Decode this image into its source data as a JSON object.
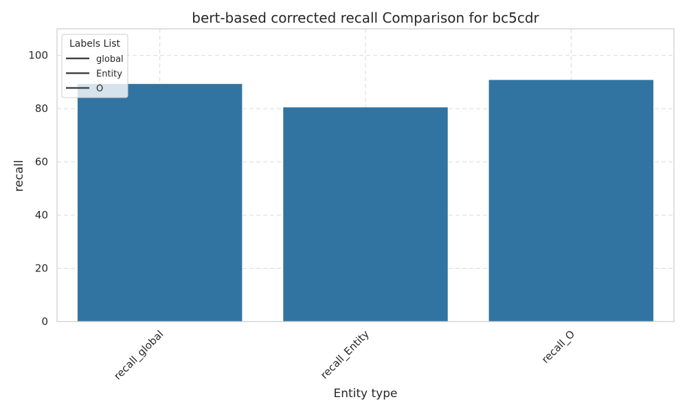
{
  "chart_data": {
    "type": "bar",
    "title": "bert-based corrected recall Comparison for bc5cdr",
    "xlabel": "Entity type",
    "ylabel": "recall",
    "categories": [
      "recall_global",
      "recall_Entity",
      "recall_O"
    ],
    "values": [
      89.3,
      80.5,
      90.8
    ],
    "ylim": [
      0,
      110
    ],
    "yticks": [
      0,
      20,
      40,
      60,
      80,
      100
    ],
    "grid": true,
    "bar_color": "#3274a1",
    "legend": {
      "title": "Labels List",
      "placement": "top-left",
      "entries": [
        "global",
        "Entity",
        "O"
      ]
    }
  }
}
